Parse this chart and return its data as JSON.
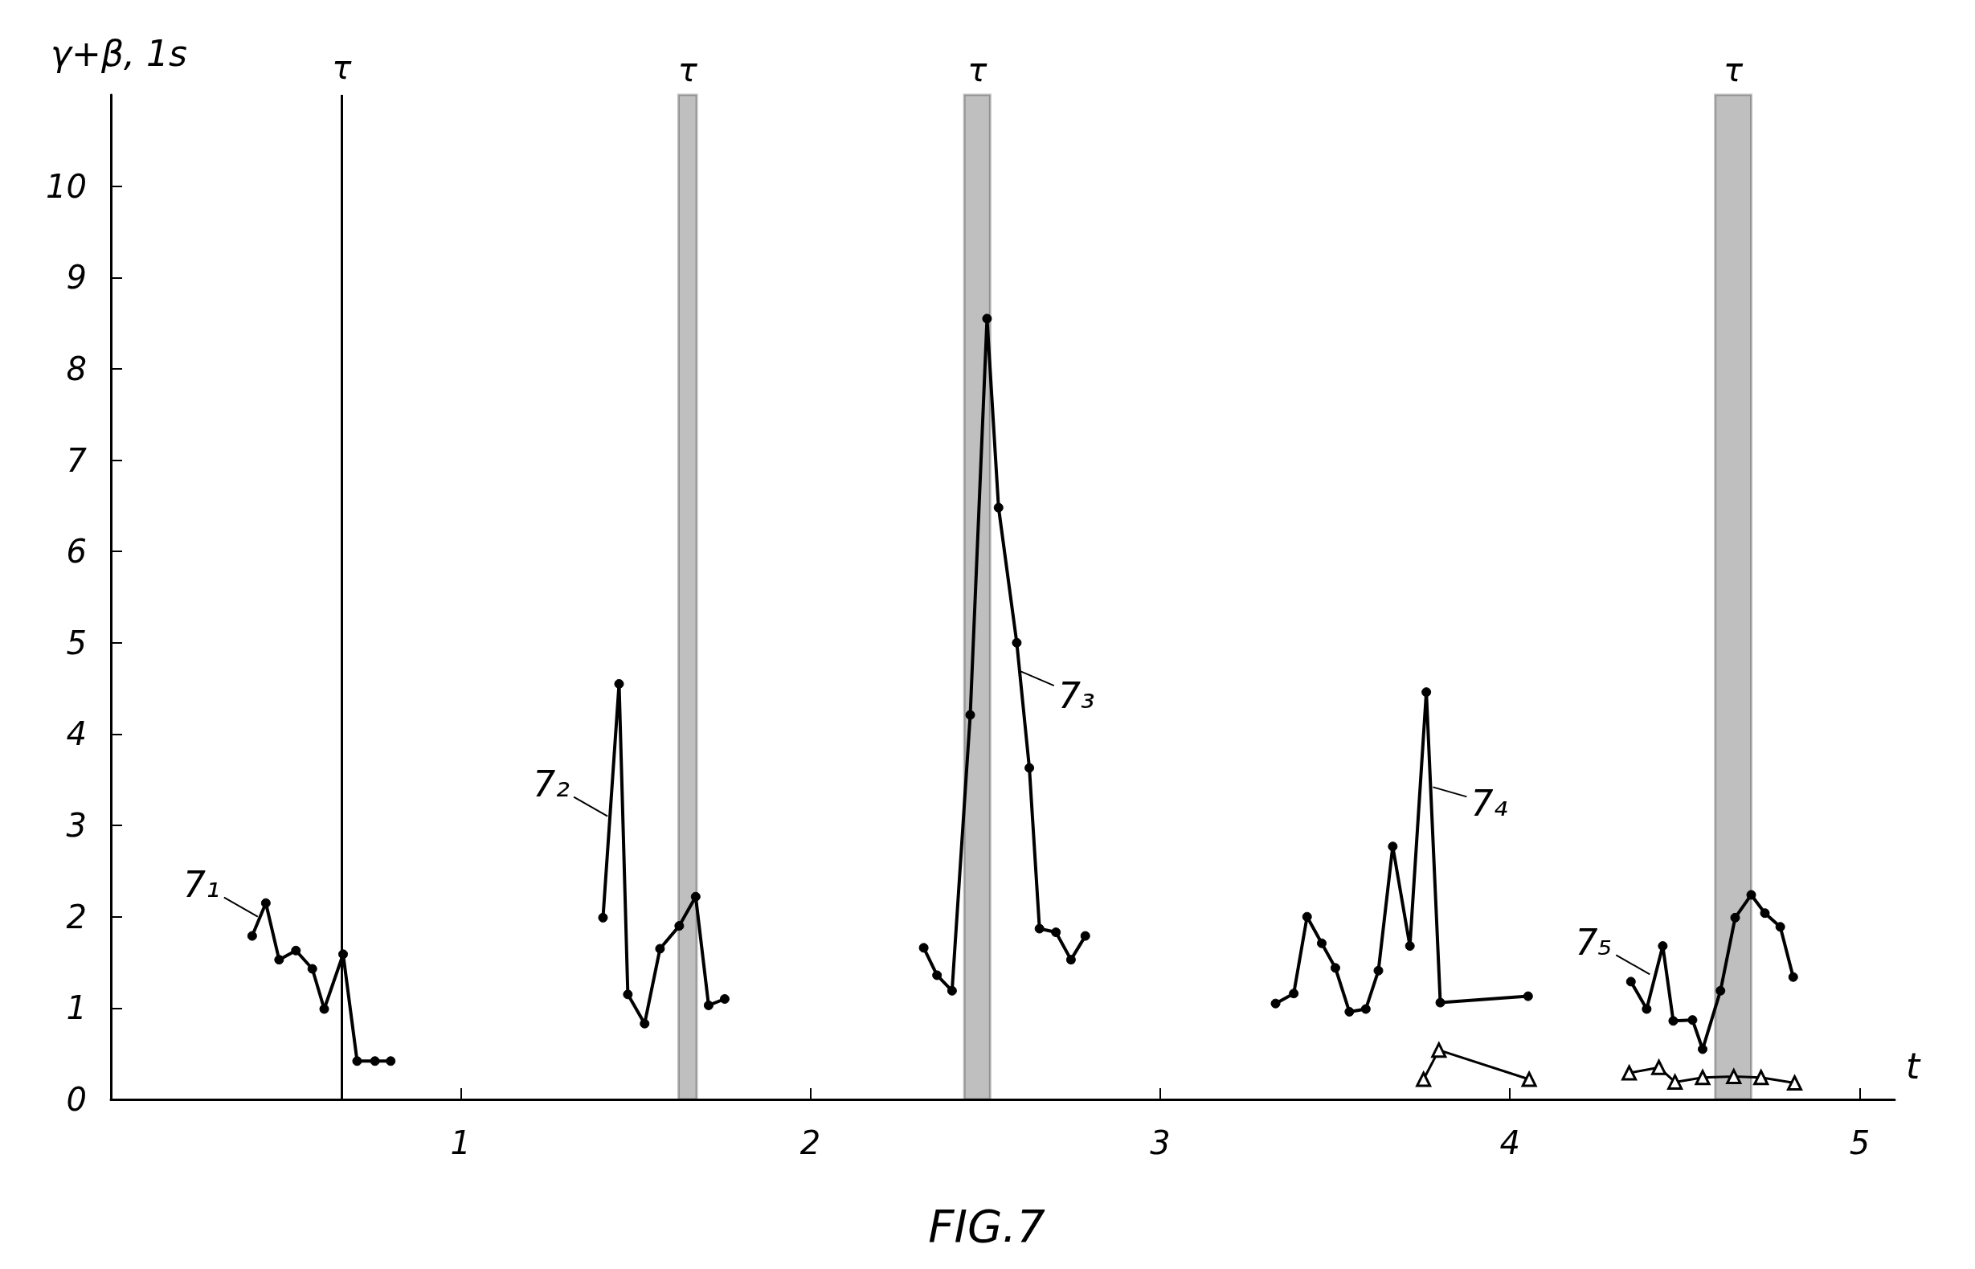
{
  "chart_data": {
    "type": "line",
    "title": "FIG.7",
    "xlabel": "t",
    "ylabel": "γ+β, 1s",
    "xlim": [
      0,
      5.1
    ],
    "xticks": [
      1,
      2,
      3,
      4,
      5
    ],
    "ylim": [
      0,
      11
    ],
    "yticks": [
      0,
      1,
      2,
      3,
      4,
      5,
      6,
      7,
      8,
      9,
      10
    ],
    "grid": false,
    "line_style": "solid",
    "series": [
      {
        "color": "#000000",
        "marker": "circle",
        "x": [
          0.404,
          0.443,
          0.481,
          0.529,
          0.576,
          0.61,
          0.664,
          0.704,
          0.755,
          0.8
        ],
        "values": [
          1.79,
          2.15,
          1.53,
          1.63,
          1.43,
          0.99,
          1.59,
          0.42,
          0.42,
          0.42
        ]
      },
      {
        "color": "#000000",
        "marker": "circle",
        "x": [
          1.407,
          1.453,
          1.478,
          1.526,
          1.57,
          1.625,
          1.672,
          1.709,
          1.755
        ],
        "values": [
          1.99,
          4.55,
          1.15,
          0.83,
          1.65,
          1.9,
          2.22,
          1.03,
          1.1
        ]
      },
      {
        "color": "#000000",
        "marker": "circle",
        "x": [
          2.324,
          2.362,
          2.405,
          2.457,
          2.505,
          2.538,
          2.59,
          2.626,
          2.655,
          2.702,
          2.745,
          2.786
        ],
        "values": [
          1.66,
          1.36,
          1.19,
          4.21,
          8.55,
          6.48,
          5.0,
          3.63,
          1.87,
          1.83,
          1.53,
          1.79
        ]
      },
      {
        "color": "#000000",
        "marker": "circle",
        "x": [
          3.33,
          3.382,
          3.42,
          3.462,
          3.501,
          3.541,
          3.588,
          3.624,
          3.665,
          3.714,
          3.761,
          3.801,
          4.052
        ],
        "values": [
          1.05,
          1.16,
          2.0,
          1.71,
          1.44,
          0.96,
          0.99,
          1.41,
          2.77,
          1.68,
          4.46,
          1.06,
          1.13
        ]
      },
      {
        "color": "#000000",
        "marker": "circle",
        "x": [
          4.346,
          4.391,
          4.437,
          4.467,
          4.522,
          4.551,
          4.602,
          4.644,
          4.69,
          4.729,
          4.773,
          4.81
        ],
        "values": [
          1.29,
          0.99,
          1.68,
          0.86,
          0.87,
          0.55,
          1.19,
          1.99,
          2.24,
          2.04,
          1.89,
          1.34
        ]
      },
      {
        "color": "#000000",
        "marker": "triangle",
        "x": [
          3.753,
          3.797,
          4.055
        ],
        "values": [
          0.22,
          0.54,
          0.22
        ]
      },
      {
        "color": "#000000",
        "marker": "triangle",
        "x": [
          4.341,
          4.426,
          4.472,
          4.551,
          4.64,
          4.718,
          4.814
        ],
        "values": [
          0.29,
          0.35,
          0.19,
          0.24,
          0.25,
          0.24,
          0.18
        ]
      }
    ],
    "ref_lines": [
      {
        "axis": "x",
        "value": 0.664,
        "label": "τ",
        "color": "#000000"
      }
    ],
    "bands": [
      {
        "axis": "x",
        "from": 1.623,
        "to": 1.675,
        "label": "τ",
        "color": "#000000"
      },
      {
        "axis": "x",
        "from": 2.44,
        "to": 2.514,
        "label": "τ",
        "color": "#000000"
      },
      {
        "axis": "x",
        "from": 4.587,
        "to": 4.69,
        "label": "τ",
        "color": "#000000"
      }
    ],
    "annotations": [
      {
        "text": "7₁",
        "x": 0.42,
        "y": 2.0
      },
      {
        "text": "7₂",
        "x": 1.42,
        "y": 3.1
      },
      {
        "text": "7₃",
        "x": 2.6,
        "y": 4.69
      },
      {
        "text": "7₄",
        "x": 3.78,
        "y": 3.42
      },
      {
        "text": "7₅",
        "x": 4.4,
        "y": 1.37
      }
    ]
  }
}
